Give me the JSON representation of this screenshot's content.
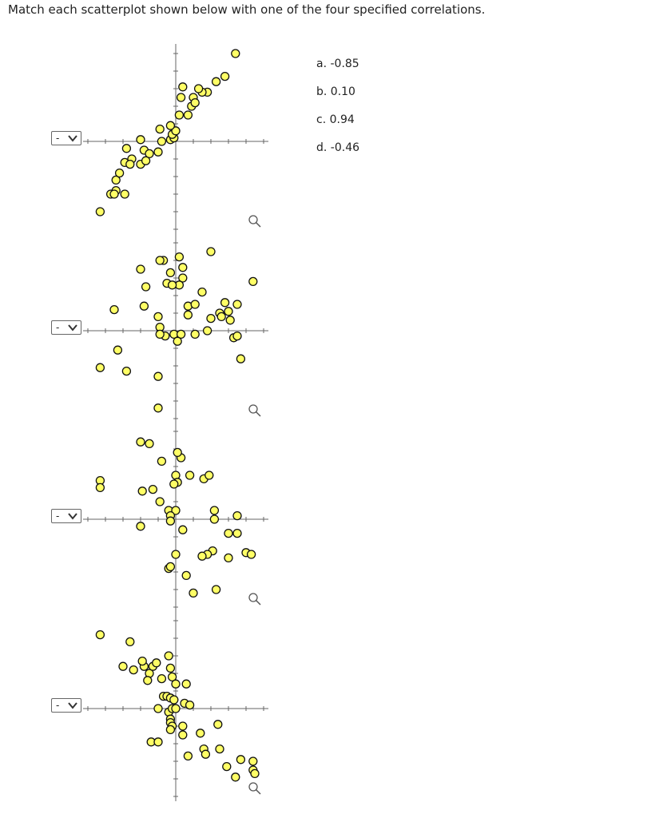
{
  "question": "Match each scatterplot shown below with one of the four specified correlations.",
  "options": [
    "a. -0.85",
    "b. 0.10",
    "c. 0.94",
    "d. -0.46"
  ],
  "colors": {
    "point_fill": "#ffff66",
    "point_stroke": "#111111",
    "axis": "#666666"
  },
  "icons": {
    "dropdown": "chevron-down-icon",
    "zoom": "magnify-icon"
  },
  "chart_data": [
    {
      "type": "scatter",
      "dropdown_value": "-",
      "xlim": [
        -5,
        5
      ],
      "ylim": [
        -5,
        5
      ],
      "points": [
        [
          -4.3,
          -4.0
        ],
        [
          -3.4,
          -2.8
        ],
        [
          -3.7,
          -3.0
        ],
        [
          -3.5,
          -3.0
        ],
        [
          -2.9,
          -3.0
        ],
        [
          -3.4,
          -2.2
        ],
        [
          -3.2,
          -1.8
        ],
        [
          -2.9,
          -1.2
        ],
        [
          -2.5,
          -1.0
        ],
        [
          -2.6,
          -1.3
        ],
        [
          -2.8,
          -0.4
        ],
        [
          -2.0,
          -1.3
        ],
        [
          -1.8,
          -0.5
        ],
        [
          -1.5,
          -0.7
        ],
        [
          -1.7,
          -1.1
        ],
        [
          -2.0,
          0.1
        ],
        [
          -1.0,
          -0.6
        ],
        [
          -0.8,
          0.0
        ],
        [
          -0.3,
          0.1
        ],
        [
          -0.1,
          0.2
        ],
        [
          -0.2,
          0.4
        ],
        [
          0.0,
          0.6
        ],
        [
          -0.9,
          0.7
        ],
        [
          -0.3,
          0.9
        ],
        [
          0.2,
          1.5
        ],
        [
          0.7,
          1.5
        ],
        [
          0.9,
          2.0
        ],
        [
          1.0,
          2.5
        ],
        [
          0.3,
          2.5
        ],
        [
          1.1,
          2.2
        ],
        [
          1.8,
          2.8
        ],
        [
          1.5,
          2.8
        ],
        [
          2.3,
          3.4
        ],
        [
          2.8,
          3.7
        ],
        [
          3.4,
          5.0
        ],
        [
          0.4,
          3.1
        ],
        [
          1.3,
          3.0
        ]
      ]
    },
    {
      "type": "scatter",
      "dropdown_value": "-",
      "xlim": [
        -5,
        5
      ],
      "ylim": [
        -5,
        5
      ],
      "points": [
        [
          -4.3,
          -2.1
        ],
        [
          -3.5,
          1.2
        ],
        [
          -3.3,
          -1.1
        ],
        [
          -2.8,
          -2.3
        ],
        [
          -2.0,
          3.5
        ],
        [
          -1.7,
          2.5
        ],
        [
          -1.8,
          1.4
        ],
        [
          -1.0,
          0.8
        ],
        [
          -0.9,
          0.2
        ],
        [
          -0.6,
          -0.3
        ],
        [
          -0.9,
          -0.2
        ],
        [
          -0.1,
          -0.2
        ],
        [
          -0.3,
          3.3
        ],
        [
          -0.7,
          4.0
        ],
        [
          -0.9,
          4.0
        ],
        [
          0.2,
          4.2
        ],
        [
          0.4,
          3.6
        ],
        [
          0.4,
          3.0
        ],
        [
          0.2,
          2.6
        ],
        [
          0.7,
          1.4
        ],
        [
          0.7,
          0.9
        ],
        [
          1.1,
          1.5
        ],
        [
          -0.5,
          2.7
        ],
        [
          -0.2,
          2.6
        ],
        [
          0.3,
          -0.2
        ],
        [
          0.1,
          -0.6
        ],
        [
          1.1,
          -0.2
        ],
        [
          1.5,
          2.2
        ],
        [
          2.0,
          4.5
        ],
        [
          1.8,
          0.0
        ],
        [
          2.0,
          0.7
        ],
        [
          2.5,
          1.0
        ],
        [
          2.8,
          1.6
        ],
        [
          3.0,
          1.1
        ],
        [
          3.1,
          0.6
        ],
        [
          3.5,
          1.5
        ],
        [
          3.3,
          -0.4
        ],
        [
          3.5,
          -0.3
        ],
        [
          3.7,
          -1.6
        ],
        [
          4.4,
          2.8
        ],
        [
          -1.0,
          -2.6
        ],
        [
          -1.0,
          -4.4
        ],
        [
          2.6,
          0.8
        ]
      ]
    },
    {
      "type": "scatter",
      "dropdown_value": "-",
      "xlim": [
        -5,
        5
      ],
      "ylim": [
        -5,
        5
      ],
      "points": [
        [
          -4.3,
          2.2
        ],
        [
          -4.3,
          1.8
        ],
        [
          -2.0,
          4.4
        ],
        [
          -1.5,
          4.3
        ],
        [
          -0.8,
          3.3
        ],
        [
          0.3,
          3.5
        ],
        [
          0.1,
          3.8
        ],
        [
          0.0,
          2.5
        ],
        [
          0.1,
          2.1
        ],
        [
          -0.1,
          2.0
        ],
        [
          0.8,
          2.5
        ],
        [
          1.6,
          2.3
        ],
        [
          1.9,
          2.5
        ],
        [
          -1.9,
          1.6
        ],
        [
          -1.3,
          1.7
        ],
        [
          -0.9,
          1.0
        ],
        [
          -0.4,
          0.5
        ],
        [
          0.0,
          0.5
        ],
        [
          -0.3,
          0.2
        ],
        [
          -0.3,
          -0.1
        ],
        [
          -2.0,
          -0.4
        ],
        [
          0.4,
          -0.6
        ],
        [
          2.2,
          0.5
        ],
        [
          2.2,
          0.0
        ],
        [
          3.5,
          0.2
        ],
        [
          3.0,
          -0.8
        ],
        [
          3.5,
          -0.8
        ],
        [
          2.1,
          -1.8
        ],
        [
          1.8,
          -2.0
        ],
        [
          1.5,
          -2.1
        ],
        [
          3.0,
          -2.2
        ],
        [
          4.0,
          -1.9
        ],
        [
          4.3,
          -2.0
        ],
        [
          0.0,
          -2.0
        ],
        [
          -0.4,
          -2.8
        ],
        [
          -0.3,
          -2.7
        ],
        [
          0.6,
          -3.2
        ],
        [
          1.0,
          -4.2
        ],
        [
          2.3,
          -4.0
        ]
      ]
    },
    {
      "type": "scatter",
      "dropdown_value": "-",
      "xlim": [
        -5,
        5
      ],
      "ylim": [
        -5,
        5
      ],
      "points": [
        [
          -4.3,
          4.2
        ],
        [
          -2.6,
          3.8
        ],
        [
          -3.0,
          2.4
        ],
        [
          -2.4,
          2.2
        ],
        [
          -1.8,
          2.4
        ],
        [
          -1.9,
          2.7
        ],
        [
          -1.5,
          2.0
        ],
        [
          -1.3,
          2.4
        ],
        [
          -1.1,
          2.6
        ],
        [
          -1.6,
          1.6
        ],
        [
          -0.8,
          1.7
        ],
        [
          -0.3,
          2.3
        ],
        [
          -0.4,
          3.0
        ],
        [
          -0.2,
          1.8
        ],
        [
          0.0,
          1.4
        ],
        [
          0.6,
          1.4
        ],
        [
          -0.7,
          0.7
        ],
        [
          -0.5,
          0.7
        ],
        [
          -0.3,
          0.6
        ],
        [
          -0.1,
          0.5
        ],
        [
          0.5,
          0.3
        ],
        [
          -1.0,
          0.0
        ],
        [
          -0.4,
          -0.2
        ],
        [
          -0.2,
          0.0
        ],
        [
          0.0,
          0.0
        ],
        [
          0.8,
          0.2
        ],
        [
          -0.3,
          -0.6
        ],
        [
          -0.3,
          -0.8
        ],
        [
          -0.2,
          -1.0
        ],
        [
          -0.3,
          -1.2
        ],
        [
          0.4,
          -1.0
        ],
        [
          0.4,
          -1.5
        ],
        [
          1.4,
          -1.4
        ],
        [
          2.4,
          -0.9
        ],
        [
          -1.4,
          -1.9
        ],
        [
          -1.0,
          -1.9
        ],
        [
          0.7,
          -2.7
        ],
        [
          1.6,
          -2.3
        ],
        [
          1.7,
          -2.6
        ],
        [
          2.5,
          -2.3
        ],
        [
          2.9,
          -3.3
        ],
        [
          3.7,
          -2.9
        ],
        [
          3.4,
          -3.9
        ],
        [
          4.4,
          -3.0
        ],
        [
          4.4,
          -3.5
        ],
        [
          4.5,
          -3.7
        ]
      ]
    }
  ]
}
